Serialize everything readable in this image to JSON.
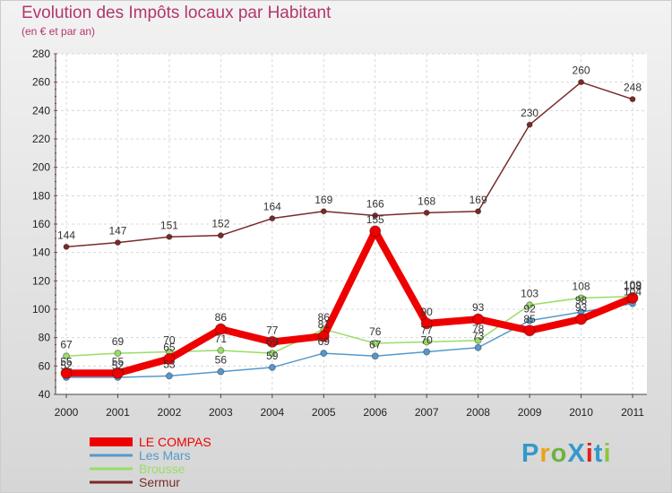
{
  "chart_data": {
    "type": "line",
    "title": "Evolution des Impôts locaux par Habitant",
    "subtitle": "(en € et par an)",
    "xlabel": "",
    "ylabel": "",
    "ylim": [
      40,
      280
    ],
    "yticks": [
      40,
      60,
      80,
      100,
      120,
      140,
      160,
      180,
      200,
      220,
      240,
      260,
      280
    ],
    "ytick_labels": [
      "40",
      "60",
      "80",
      "100",
      "120",
      "140",
      "160",
      "180",
      "200",
      "220",
      "240",
      "260",
      "280"
    ],
    "categories": [
      "2000",
      "2001",
      "2002",
      "2003",
      "2004",
      "2005",
      "2006",
      "2007",
      "2008",
      "2009",
      "2010",
      "2011"
    ],
    "grid": true,
    "legend_position": "bottom-left",
    "series": [
      {
        "name": "Sermur",
        "color": "#7a2a2a",
        "values": [
          144,
          147,
          151,
          152,
          164,
          169,
          166,
          168,
          169,
          230,
          260,
          248
        ]
      },
      {
        "name": "Brousse",
        "color": "#99dd66",
        "values": [
          67,
          69,
          70,
          71,
          69,
          86,
          76,
          77,
          78,
          103,
          108,
          109
        ]
      },
      {
        "name": "Les Mars",
        "color": "#5599cc",
        "values": [
          52,
          52,
          53,
          56,
          59,
          69,
          67,
          70,
          73,
          92,
          98,
          104
        ]
      },
      {
        "name": "LE COMPAS",
        "color": "#ee0000",
        "values": [
          55,
          55,
          65,
          86,
          77,
          81,
          155,
          90,
          93,
          85,
          93,
          108
        ]
      }
    ],
    "data_labels": [
      {
        "series": "Sermur",
        "labels": [
          "144",
          "147",
          "151",
          "152",
          "164",
          "169",
          "166",
          "168",
          "169",
          "230",
          "260",
          "248"
        ]
      },
      {
        "series": "Brousse",
        "labels": [
          "67",
          "69",
          "70",
          "71",
          "69",
          "86",
          "76",
          "77",
          "78",
          "103",
          "108",
          "109"
        ]
      },
      {
        "series": "Les Mars",
        "labels": [
          "52",
          "52",
          "53",
          "56",
          "59",
          "69",
          "67",
          "70",
          "73",
          "92",
          "98",
          "104"
        ]
      },
      {
        "series": "LE COMPAS",
        "labels": [
          "55",
          "55",
          "65",
          "86",
          "77",
          "81",
          "155",
          "90",
          "93",
          "85",
          "93",
          "108"
        ]
      }
    ],
    "legend": [
      "LE COMPAS",
      "Les Mars",
      "Brousse",
      "Sermur"
    ]
  },
  "logo": {
    "text": "ProXiti",
    "colors": [
      "#3399cc",
      "#e8a319",
      "#6cb33f",
      "#3399cc",
      "#d9231d",
      "#3399cc",
      "#8cc63f"
    ]
  }
}
